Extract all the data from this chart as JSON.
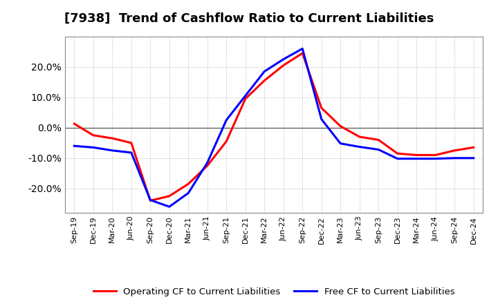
{
  "title": "[7938]  Trend of Cashflow Ratio to Current Liabilities",
  "x_labels": [
    "Sep-19",
    "Dec-19",
    "Mar-20",
    "Jun-20",
    "Sep-20",
    "Dec-20",
    "Mar-21",
    "Jun-21",
    "Sep-21",
    "Dec-21",
    "Mar-22",
    "Jun-22",
    "Sep-22",
    "Dec-22",
    "Mar-23",
    "Jun-23",
    "Sep-23",
    "Dec-23",
    "Mar-24",
    "Jun-24",
    "Sep-24",
    "Dec-24"
  ],
  "operating_cf": [
    0.013,
    -0.025,
    -0.035,
    -0.05,
    -0.24,
    -0.225,
    -0.185,
    -0.125,
    -0.045,
    0.095,
    0.155,
    0.205,
    0.245,
    0.065,
    0.005,
    -0.03,
    -0.04,
    -0.085,
    -0.09,
    -0.09,
    -0.075,
    -0.065
  ],
  "free_cf": [
    -0.06,
    -0.065,
    -0.075,
    -0.082,
    -0.238,
    -0.26,
    -0.215,
    -0.115,
    0.025,
    0.105,
    0.185,
    0.225,
    0.26,
    0.028,
    -0.052,
    -0.063,
    -0.072,
    -0.102,
    -0.102,
    -0.102,
    -0.1,
    -0.1
  ],
  "operating_color": "#ff0000",
  "free_color": "#0000ff",
  "ylim_low": -0.28,
  "ylim_high": 0.3,
  "yticks": [
    -0.2,
    -0.1,
    0.0,
    0.1,
    0.2
  ],
  "bg_color": "#ffffff",
  "plot_bg_color": "#ffffff",
  "grid_color": "#aaaaaa",
  "legend_op": "Operating CF to Current Liabilities",
  "legend_free": "Free CF to Current Liabilities",
  "linewidth": 2.2,
  "title_fontsize": 13,
  "tick_fontsize": 10,
  "xtick_fontsize": 8
}
